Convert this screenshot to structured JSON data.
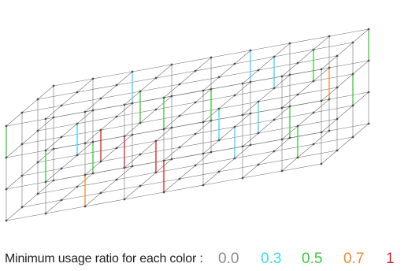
{
  "legend": {
    "title": "Minimum usage ratio for each color :",
    "items": [
      {
        "label": "0.0",
        "color": "#8c8c8c"
      },
      {
        "label": "0.3",
        "color": "#38d9f2"
      },
      {
        "label": "0.5",
        "color": "#3cc83c"
      },
      {
        "label": "0.7",
        "color": "#f08a28"
      },
      {
        "label": "1",
        "color": "#e01e1e"
      }
    ]
  },
  "structure": {
    "member_color": "#707070",
    "node_color": "#505050"
  }
}
